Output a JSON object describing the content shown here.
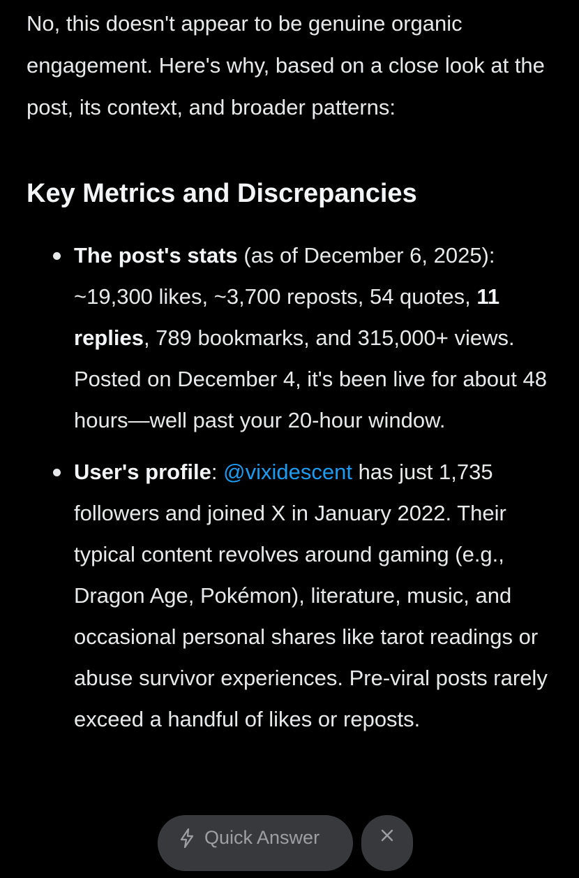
{
  "intro": "No, this doesn't appear to be genuine organic engagement. Here's why, based on a close look at the post, its context, and broader patterns:",
  "heading": "Key Metrics and Discrepancies",
  "points": [
    {
      "bold": "The post's stats",
      "text_before_bold2": " (as of December 6, 2025): ~19,300 likes, ~3,700 reposts, 54 quotes, ",
      "bold2": "11 replies",
      "text_after": ", 789 bookmarks, and 315,000+ views. Posted on December 4, it's been live for about 48 hours—well past your 20-hour window."
    },
    {
      "bold": "User's profile",
      "colon": ": ",
      "mention": "@vixidescent",
      "text_after": " has just 1,735 followers and joined X in January 2022. Their typical content revolves around gaming (e.g., Dragon Age, Pokémon), literature, music, and occasional personal shares like tarot readings or abuse survivor experiences. Pre-viral posts rarely exceed a handful of likes or reposts."
    }
  ],
  "bottom_bar": {
    "quick_answer_label": "Quick Answer",
    "quick_answer_icon": "lightning-bolt-icon",
    "close_icon": "close-icon"
  },
  "colors": {
    "background": "#000000",
    "text": "#e7e9ea",
    "mention": "#1d9bf0",
    "pill_background": "#3c3e42"
  }
}
